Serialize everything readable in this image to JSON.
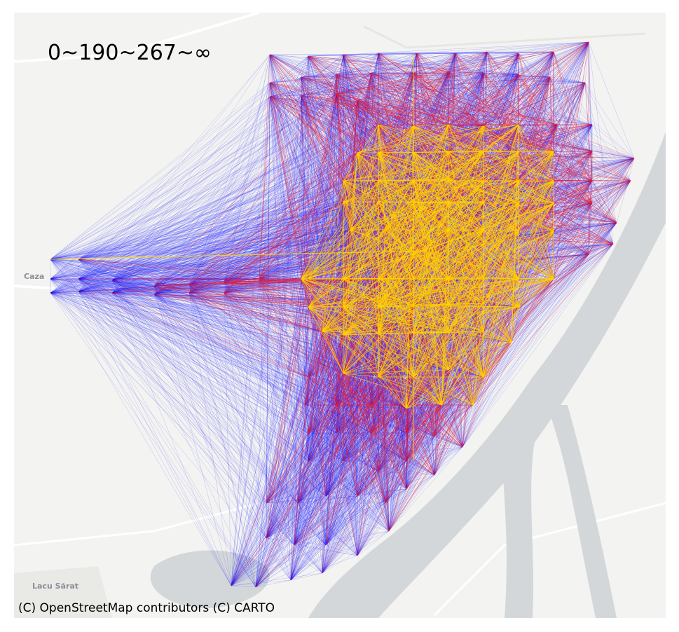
{
  "map": {
    "title": "0~190~267~∞",
    "attribution": "(C) OpenStreetMap contributors (C) CARTO",
    "place_labels": [
      "Lacu Sărat",
      "Caza"
    ],
    "legend_bins": [
      "0",
      "190",
      "267",
      "∞"
    ],
    "colors": {
      "background": "#f3f3f1",
      "water": "#d4d7da",
      "road": "#ffffff",
      "low": "#0000ff",
      "mid": "#ff1a1a",
      "high": "#ffd400"
    },
    "basemap": "CARTO light (OpenStreetMap)"
  }
}
